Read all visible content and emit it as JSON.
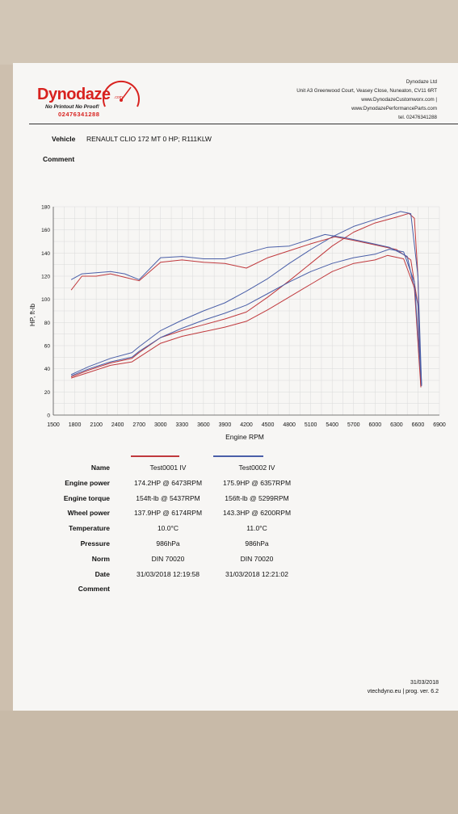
{
  "header": {
    "brand": "Dynodaze",
    "brand_suffix": ".com",
    "tagline": "No Printout No Proof!",
    "phone": "02476341288",
    "company": "Dynodaze Ltd",
    "address": "Unit A3 Greenwood Court, Veasey Close, Nuneaton, CV11 6RT",
    "web1": "www.DynodazeCustomworx.com |",
    "web2": "www.DynodazePerformanceParts.com",
    "tel": "tel. 02476341288"
  },
  "vehicle": {
    "label": "Vehicle",
    "value": "RENAULT CLIO 172 MT 0 HP; R111KLW"
  },
  "comment": {
    "label": "Comment"
  },
  "chart_data": {
    "type": "line",
    "xlabel": "Engine RPM",
    "ylabel": "HP, ft-lb",
    "xlim": [
      1500,
      6900
    ],
    "ylim": [
      0,
      180
    ],
    "xticks": [
      1500,
      1800,
      2100,
      2400,
      2700,
      3000,
      3300,
      3600,
      3900,
      4200,
      4500,
      4800,
      5100,
      5400,
      5700,
      6000,
      6300,
      6600,
      6900
    ],
    "yticks": [
      0,
      20,
      40,
      60,
      80,
      100,
      120,
      140,
      160,
      180
    ],
    "grid": true,
    "series": [
      {
        "name": "Test0001 IV",
        "color": "#c0393d",
        "kind": "power",
        "x": [
          1750,
          2000,
          2300,
          2600,
          2700,
          3000,
          3300,
          3600,
          3900,
          4200,
          4500,
          4800,
          5100,
          5400,
          5700,
          6000,
          6300,
          6473,
          6550,
          6600,
          6640
        ],
        "y": [
          33,
          39,
          45,
          49,
          54,
          67,
          73,
          78,
          83,
          89,
          102,
          116,
          131,
          146,
          158,
          166,
          171,
          174.2,
          170,
          120,
          25
        ]
      },
      {
        "name": "Test0002 IV",
        "color": "#4a5fa8",
        "kind": "power",
        "x": [
          1750,
          2000,
          2300,
          2600,
          2700,
          3000,
          3300,
          3600,
          3900,
          4200,
          4500,
          4800,
          5100,
          5400,
          5700,
          6000,
          6357,
          6500,
          6600,
          6650
        ],
        "y": [
          35,
          42,
          49,
          54,
          59,
          73,
          82,
          90,
          97,
          107,
          118,
          131,
          143,
          154,
          163,
          169,
          175.9,
          174,
          120,
          26
        ]
      },
      {
        "name": "Test0001 IV",
        "color": "#c0393d",
        "kind": "torque",
        "x": [
          1750,
          1900,
          2100,
          2300,
          2500,
          2700,
          3000,
          3300,
          3600,
          3900,
          4200,
          4500,
          4800,
          5100,
          5437,
          5700,
          6000,
          6300,
          6500,
          6600,
          6640
        ],
        "y": [
          108,
          120,
          120,
          122,
          119,
          116,
          132,
          134,
          132,
          131,
          127,
          136,
          142,
          148,
          154,
          151,
          147,
          143,
          134,
          95,
          25
        ]
      },
      {
        "name": "Test0002 IV",
        "color": "#4a5fa8",
        "kind": "torque",
        "x": [
          1750,
          1900,
          2100,
          2300,
          2500,
          2700,
          3000,
          3300,
          3600,
          3900,
          4200,
          4500,
          4800,
          5299,
          5600,
          5900,
          6200,
          6450,
          6600,
          6650
        ],
        "y": [
          117,
          122,
          123,
          124,
          122,
          117,
          136,
          137,
          135,
          135,
          140,
          145,
          146,
          156,
          153,
          149,
          145,
          137,
          95,
          26
        ]
      },
      {
        "name": "Test0001 IV",
        "color": "#c0393d",
        "kind": "wheel",
        "x": [
          1750,
          2000,
          2300,
          2600,
          2700,
          3000,
          3300,
          3600,
          3900,
          4200,
          4500,
          4800,
          5100,
          5400,
          5700,
          6000,
          6174,
          6400,
          6550,
          6640
        ],
        "y": [
          32,
          37,
          43,
          46,
          50,
          62,
          68,
          72,
          76,
          81,
          91,
          102,
          113,
          124,
          131,
          134,
          137.9,
          135,
          110,
          24
        ]
      },
      {
        "name": "Test0002 IV",
        "color": "#4a5fa8",
        "kind": "wheel",
        "x": [
          1750,
          2000,
          2300,
          2600,
          2700,
          3000,
          3300,
          3600,
          3900,
          4200,
          4500,
          4800,
          5100,
          5400,
          5700,
          6000,
          6200,
          6400,
          6550,
          6650
        ],
        "y": [
          34,
          40,
          46,
          50,
          55,
          67,
          75,
          82,
          88,
          95,
          105,
          115,
          124,
          131,
          136,
          139,
          143.3,
          141,
          115,
          25
        ]
      }
    ]
  },
  "table": {
    "headers": [
      "Name",
      "Test0001 IV",
      "Test0002 IV"
    ],
    "rows": [
      [
        "Engine power",
        "174.2HP @ 6473RPM",
        "175.9HP @ 6357RPM"
      ],
      [
        "Engine torque",
        "154ft-lb @ 5437RPM",
        "156ft-lb @ 5299RPM"
      ],
      [
        "Wheel power",
        "137.9HP @ 6174RPM",
        "143.3HP @ 6200RPM"
      ],
      [
        "Temperature",
        "10.0°C",
        "11.0°C"
      ],
      [
        "Pressure",
        "986hPa",
        "986hPa"
      ],
      [
        "Norm",
        "DIN 70020",
        "DIN 70020"
      ],
      [
        "Date",
        "31/03/2018 12:19:58",
        "31/03/2018 12:21:02"
      ],
      [
        "Comment",
        "",
        ""
      ]
    ]
  },
  "footer": {
    "date": "31/03/2018",
    "prog": "vtechdyno.eu | prog. ver. 6.2"
  }
}
